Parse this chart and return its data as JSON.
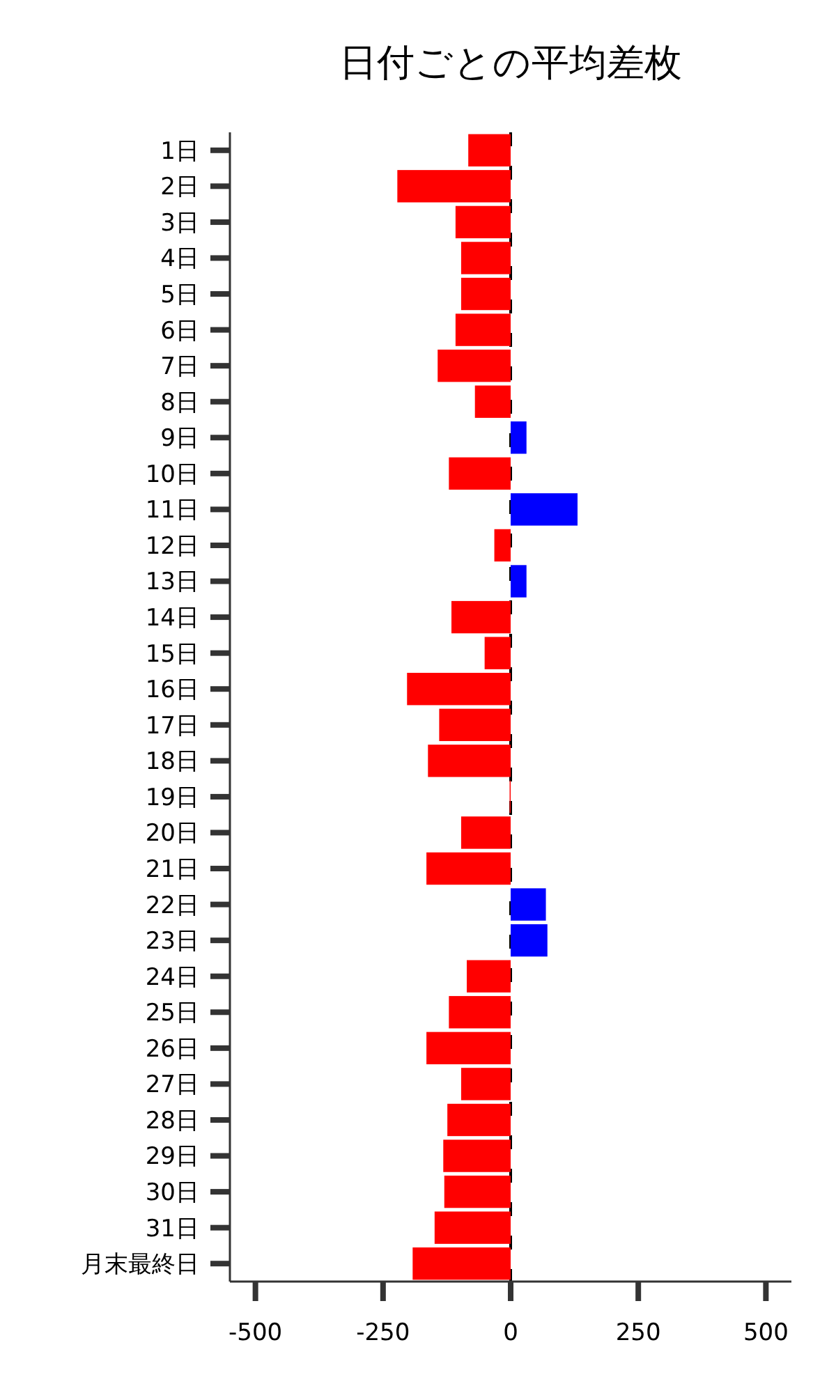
{
  "chart_data": {
    "type": "bar",
    "orientation": "horizontal",
    "title": "日付ごとの平均差枚",
    "categories": [
      "1日",
      "2日",
      "3日",
      "4日",
      "5日",
      "6日",
      "7日",
      "8日",
      "9日",
      "10日",
      "11日",
      "12日",
      "13日",
      "14日",
      "15日",
      "16日",
      "17日",
      "18日",
      "19日",
      "20日",
      "21日",
      "22日",
      "23日",
      "24日",
      "25日",
      "26日",
      "27日",
      "28日",
      "29日",
      "30日",
      "31日",
      "月末最終日"
    ],
    "values": [
      -83,
      -222,
      -108,
      -97,
      -97,
      -108,
      -143,
      -70,
      31,
      -121,
      131,
      -32,
      31,
      -116,
      -51,
      -203,
      -140,
      -162,
      -2,
      -97,
      -165,
      69,
      72,
      -86,
      -121,
      -165,
      -97,
      -124,
      -132,
      -130,
      -149,
      -192
    ],
    "colors": [
      "#ff0000",
      "#ff0000",
      "#ff0000",
      "#ff0000",
      "#ff0000",
      "#ff0000",
      "#ff0000",
      "#ff0000",
      "#0000ff",
      "#ff0000",
      "#0000ff",
      "#ff0000",
      "#0000ff",
      "#ff0000",
      "#ff0000",
      "#ff0000",
      "#ff0000",
      "#ff0000",
      "#ff0000",
      "#ff0000",
      "#ff0000",
      "#0000ff",
      "#0000ff",
      "#ff0000",
      "#ff0000",
      "#ff0000",
      "#ff0000",
      "#ff0000",
      "#ff0000",
      "#ff0000",
      "#ff0000",
      "#ff0000"
    ],
    "xlim": [
      -550,
      550
    ],
    "xticks": [
      -500,
      -250,
      0,
      250,
      500
    ],
    "ref_lines": [
      {
        "axis": "x",
        "value": 0,
        "color": "#000000",
        "line_style": "dashed"
      }
    ],
    "grid": false
  }
}
